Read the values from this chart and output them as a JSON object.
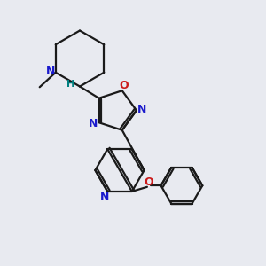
{
  "bg_color": "#e8eaf0",
  "bond_color": "#1a1a1a",
  "N_color": "#1a1acc",
  "O_color": "#cc1a1a",
  "H_color": "#008080",
  "line_width": 1.6,
  "figsize": [
    3.0,
    3.0
  ],
  "dpi": 100,
  "xlim": [
    0,
    10
  ],
  "ylim": [
    0,
    10
  ]
}
